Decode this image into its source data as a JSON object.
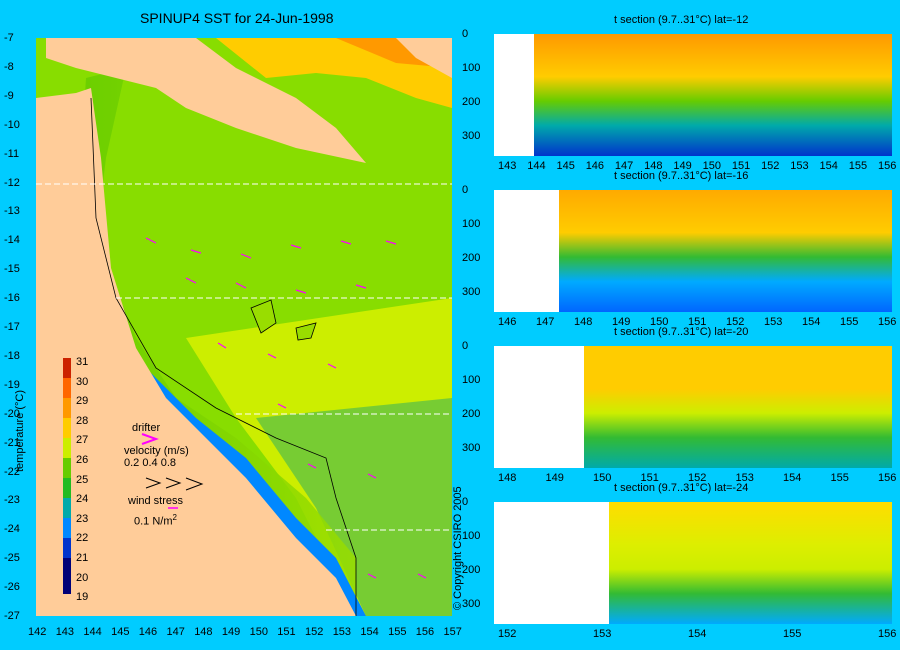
{
  "map": {
    "title": "SPINUP4 SST for 24-Jun-1998",
    "lat_ticks": [
      "-7",
      "-8",
      "-9",
      "-10",
      "-11",
      "-12",
      "-13",
      "-14",
      "-15",
      "-16",
      "-17",
      "-18",
      "-19",
      "-20",
      "-21",
      "-22",
      "-23",
      "-24",
      "-25",
      "-26",
      "-27"
    ],
    "lon_ticks": [
      "142",
      "143",
      "144",
      "145",
      "146",
      "147",
      "148",
      "149",
      "150",
      "151",
      "152",
      "153",
      "154",
      "155",
      "156",
      "157"
    ],
    "colorbar": {
      "label": "temperature (°C)",
      "ticks": [
        "31",
        "30",
        "29",
        "28",
        "27",
        "26",
        "25",
        "24",
        "23",
        "22",
        "21",
        "20",
        "19"
      ]
    },
    "legend": {
      "drifter": "drifter",
      "velocity": "velocity (m/s)",
      "velocity_values": "0.2  0.4  0.8",
      "wind_stress": "wind stress",
      "wind_value": "0.1 N/m",
      "wind_sup": "2"
    },
    "copyright": "© Copyright CSIRO 2005",
    "colors": {
      "land": "#ffcc99",
      "background": "#00ccff",
      "drifter": "#ff00ff",
      "section_line": "#ffffff"
    }
  },
  "sections": [
    {
      "title": "t section (9.7..31°C) lat=-12",
      "x_ticks": [
        "143",
        "144",
        "145",
        "146",
        "147",
        "148",
        "149",
        "150",
        "151",
        "152",
        "153",
        "154",
        "155",
        "156"
      ],
      "y_ticks": [
        "0",
        "100",
        "200",
        "300"
      ]
    },
    {
      "title": "t section (9.7..31°C) lat=-16",
      "x_ticks": [
        "146",
        "147",
        "148",
        "149",
        "150",
        "151",
        "152",
        "153",
        "154",
        "155",
        "156"
      ],
      "y_ticks": [
        "0",
        "100",
        "200",
        "300"
      ]
    },
    {
      "title": "t section (9.7..31°C) lat=-20",
      "x_ticks": [
        "148",
        "149",
        "150",
        "151",
        "152",
        "153",
        "154",
        "155",
        "156"
      ],
      "y_ticks": [
        "0",
        "100",
        "200",
        "300"
      ]
    },
    {
      "title": "t section (9.7..31°C) lat=-24",
      "x_ticks": [
        "152",
        "153",
        "154",
        "155",
        "156"
      ],
      "y_ticks": [
        "0",
        "100",
        "200",
        "300"
      ]
    }
  ]
}
